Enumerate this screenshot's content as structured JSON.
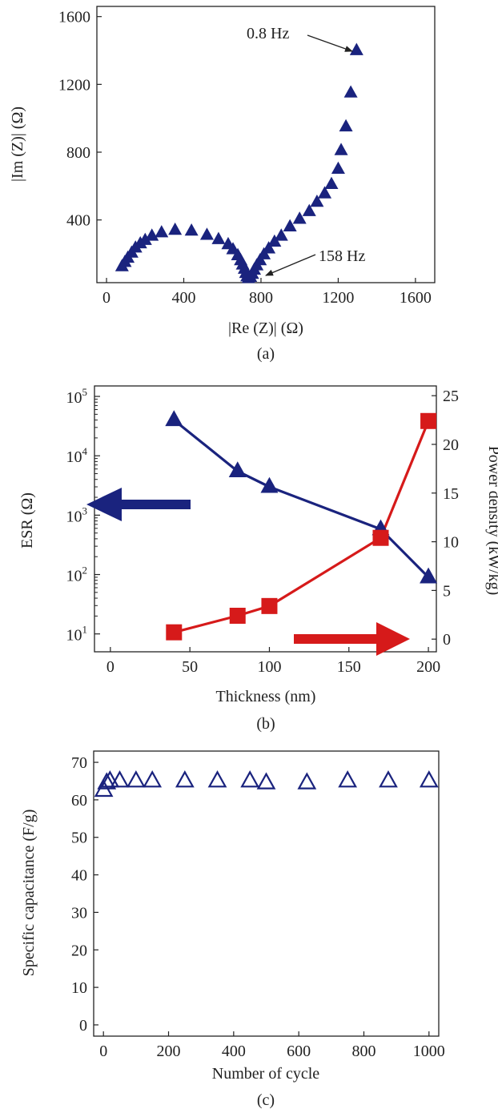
{
  "colors": {
    "navy": "#1a237e",
    "red": "#d61a1a",
    "axis": "#222222"
  },
  "panels": {
    "a": "(a)",
    "b": "(b)",
    "c": "(c)"
  },
  "chart_data": [
    {
      "type": "scatter",
      "panel": "(a)",
      "xlabel": "|Re (Z)| (Ω)",
      "ylabel": "|Im (Z)| (Ω)",
      "xlim": [
        -50,
        1700
      ],
      "ylim": [
        30,
        1660
      ],
      "xticks": [
        0,
        400,
        800,
        1200,
        1600
      ],
      "yticks": [
        400,
        800,
        1200,
        1600
      ],
      "marker": "filled-triangle",
      "color": "#1a237e",
      "annotations": [
        {
          "text": "0.8 Hz",
          "x": 1295,
          "y": 1400
        },
        {
          "text": "158 Hz",
          "x": 735,
          "y": 55
        }
      ],
      "points": [
        [
          80,
          125
        ],
        [
          95,
          150
        ],
        [
          110,
          175
        ],
        [
          130,
          205
        ],
        [
          150,
          235
        ],
        [
          175,
          260
        ],
        [
          200,
          280
        ],
        [
          235,
          305
        ],
        [
          285,
          325
        ],
        [
          355,
          340
        ],
        [
          440,
          335
        ],
        [
          520,
          310
        ],
        [
          580,
          285
        ],
        [
          630,
          255
        ],
        [
          655,
          225
        ],
        [
          680,
          190
        ],
        [
          695,
          160
        ],
        [
          705,
          135
        ],
        [
          715,
          110
        ],
        [
          722,
          85
        ],
        [
          728,
          65
        ],
        [
          735,
          55
        ],
        [
          745,
          62
        ],
        [
          755,
          80
        ],
        [
          765,
          105
        ],
        [
          778,
          130
        ],
        [
          795,
          160
        ],
        [
          815,
          195
        ],
        [
          840,
          230
        ],
        [
          870,
          270
        ],
        [
          905,
          305
        ],
        [
          950,
          360
        ],
        [
          1000,
          405
        ],
        [
          1050,
          450
        ],
        [
          1090,
          505
        ],
        [
          1130,
          555
        ],
        [
          1165,
          610
        ],
        [
          1200,
          700
        ],
        [
          1215,
          810
        ],
        [
          1240,
          950
        ],
        [
          1265,
          1150
        ],
        [
          1295,
          1400
        ]
      ]
    },
    {
      "type": "line",
      "panel": "(b)",
      "xlabel": "Thickness (nm)",
      "ylabel_left": "ESR (Ω)",
      "ylabel_right": "Power density (kW/kg)",
      "xlim": [
        -10,
        205
      ],
      "xticks": [
        0,
        50,
        100,
        150,
        200
      ],
      "y_left_scale": "log",
      "y_left_lim": [
        5,
        150000
      ],
      "y_left_ticks": [
        10,
        100,
        1000,
        10000,
        100000
      ],
      "y_left_tick_labels": [
        {
          "base": "10",
          "exp": "1"
        },
        {
          "base": "10",
          "exp": "2"
        },
        {
          "base": "10",
          "exp": "3"
        },
        {
          "base": "10",
          "exp": "4"
        },
        {
          "base": "10",
          "exp": "5"
        }
      ],
      "y_right_lim": [
        -1.3,
        26
      ],
      "y_right_ticks": [
        0,
        5,
        10,
        15,
        20,
        25
      ],
      "x": [
        40,
        80,
        100,
        170,
        200
      ],
      "series": [
        {
          "color": "#1a237e",
          "marker": "filled-triangle",
          "axis": "left",
          "values": [
            40000,
            5500,
            3000,
            580,
            90
          ]
        },
        {
          "color": "#d61a1a",
          "marker": "filled-square",
          "axis": "right",
          "values": [
            0.7,
            2.4,
            3.4,
            10.4,
            22.4
          ]
        }
      ],
      "arrows": [
        {
          "direction": "left",
          "color": "#1a237e",
          "points_to": "left axis"
        },
        {
          "direction": "right",
          "color": "#d61a1a",
          "points_to": "right axis"
        }
      ]
    },
    {
      "type": "scatter",
      "panel": "(c)",
      "xlabel": "Number of cycle",
      "ylabel": "Specific capacitance (F/g)",
      "xlim": [
        -30,
        1030
      ],
      "ylim": [
        -3,
        73
      ],
      "xticks": [
        0,
        200,
        400,
        600,
        800,
        1000
      ],
      "yticks": [
        0,
        10,
        20,
        30,
        40,
        50,
        60,
        70
      ],
      "marker": "open-triangle",
      "color": "#1a237e",
      "points": [
        [
          1,
          62.5
        ],
        [
          10,
          64.5
        ],
        [
          20,
          65
        ],
        [
          50,
          65
        ],
        [
          100,
          65
        ],
        [
          150,
          65
        ],
        [
          250,
          65
        ],
        [
          350,
          65
        ],
        [
          450,
          65
        ],
        [
          500,
          64.5
        ],
        [
          625,
          64.5
        ],
        [
          750,
          65
        ],
        [
          875,
          65
        ],
        [
          1000,
          65
        ]
      ]
    }
  ]
}
